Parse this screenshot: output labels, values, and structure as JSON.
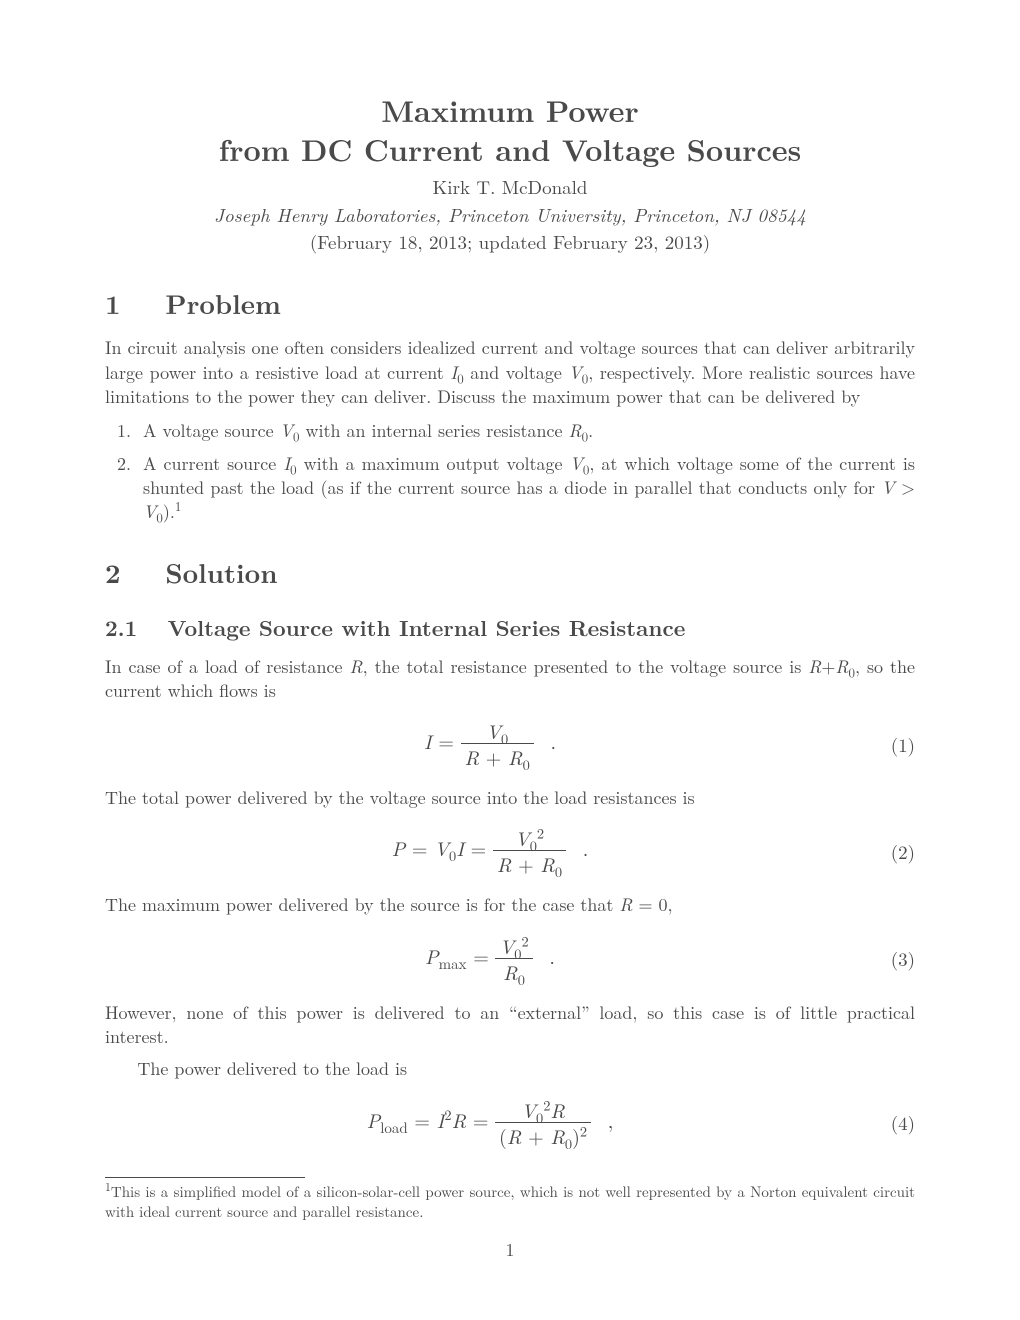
{
  "colors": {
    "text": "#4a4a4a",
    "background": "#ffffff",
    "rule": "#4a4a4a"
  },
  "typography": {
    "body_font": "Computer Modern / Times-like serif",
    "body_size_pt": 12,
    "title_size_pt": 20,
    "section_size_pt": 18,
    "subsection_size_pt": 15,
    "footnote_size_pt": 10
  },
  "header": {
    "title_line1": "Maximum Power",
    "title_line2": "from DC Current and Voltage Sources",
    "author": "Kirk T. McDonald",
    "affiliation": "Joseph Henry Laboratories, Princeton University, Princeton, NJ 08544",
    "date": "(February 18, 2013; updated February 23, 2013)"
  },
  "sections": {
    "s1": {
      "num": "1",
      "title": "Problem"
    },
    "s2": {
      "num": "2",
      "title": "Solution"
    },
    "s21": {
      "num": "2.1",
      "title": "Voltage Source with Internal Series Resistance"
    }
  },
  "paragraphs": {
    "p_intro": "In circuit analysis one often considers idealized current and voltage sources that can deliver arbitrarily large power into a resistive load at current I₀ and voltage V₀, respectively. More realistic sources have limitations to the power they can deliver. Discuss the maximum power that can be delivered by",
    "p_li1": "A voltage source V₀ with an internal series resistance R₀.",
    "p_li2": "A current source I₀ with a maximum output voltage V₀, at which voltage some of the current is shunted past the load (as if the current source has a diode in parallel that conducts only for V > V₀).¹",
    "p_21a": "In case of a load of resistance R, the total resistance presented to the voltage source is R+R₀, so the current which flows is",
    "p_21b": "The total power delivered by the voltage source into the load resistances is",
    "p_21c": "The maximum power delivered by the source is for the case that R = 0,",
    "p_21d": "However, none of this power is delivered to an “external” load, so this case is of little practical interest.",
    "p_21e": "The power delivered to the load is"
  },
  "equations": {
    "eq1": {
      "lhs": "I =",
      "num": "V₀",
      "den": "R + R₀",
      "tail": ".",
      "number": "(1)"
    },
    "eq2": {
      "pre": "P = V₀I =",
      "num": "V₀²",
      "den": "R + R₀",
      "tail": ".",
      "number": "(2)"
    },
    "eq3": {
      "lhs": "Pₘₐₓ =",
      "num": "V₀²",
      "den": "R₀",
      "tail": ".",
      "number": "(3)"
    },
    "eq4": {
      "pre": "P_load = I²R =",
      "num": "V₀² R",
      "den": "(R + R₀)²",
      "tail": ",",
      "number": "(4)"
    }
  },
  "footnote": {
    "marker": "1",
    "text": "This is a simplified model of a silicon-solar-cell power source, which is not well represented by a Norton equivalent circuit with ideal current source and parallel resistance."
  },
  "page_number": "1"
}
